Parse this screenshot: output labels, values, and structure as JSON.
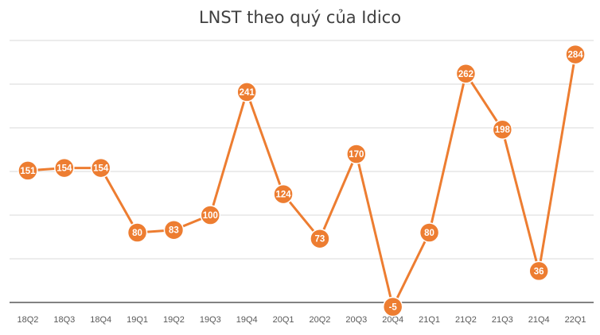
{
  "chart_data": {
    "type": "line",
    "title": "LNST theo quý của Idico",
    "xlabel": "",
    "ylabel": "",
    "categories": [
      "18Q2",
      "18Q3",
      "18Q4",
      "19Q1",
      "19Q2",
      "19Q3",
      "19Q4",
      "20Q1",
      "20Q2",
      "20Q3",
      "20Q4",
      "21Q1",
      "21Q2",
      "21Q3",
      "21Q4",
      "22Q1"
    ],
    "series": [
      {
        "values": [
          151,
          154,
          154,
          80,
          83,
          100,
          241,
          124,
          73,
          170,
          -5,
          80,
          262,
          198,
          36,
          284
        ]
      }
    ],
    "ylim": [
      0,
      300
    ],
    "grid": true,
    "legend": "none",
    "colors": {
      "line": "#ED7D31",
      "grid": "#D9D9D9",
      "axis": "#595959"
    }
  }
}
